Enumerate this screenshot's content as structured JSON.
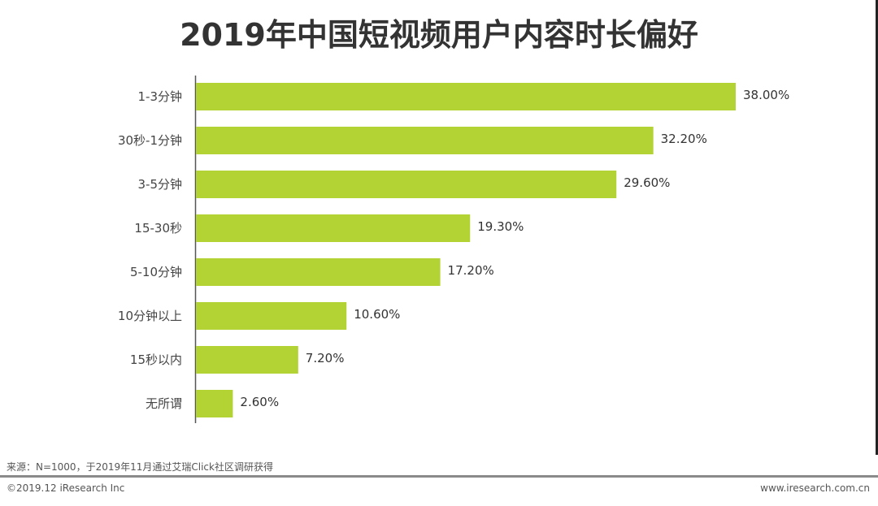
{
  "chart_data": {
    "type": "bar",
    "orientation": "horizontal",
    "title": "2019年中国短视频用户内容时长偏好",
    "categories": [
      "1-3分钟",
      "30秒-1分钟",
      "3-5分钟",
      "15-30秒",
      "5-10分钟",
      "10分钟以上",
      "15秒以内",
      "无所谓"
    ],
    "values": [
      38.0,
      32.2,
      29.6,
      19.3,
      17.2,
      10.6,
      7.2,
      2.6
    ],
    "value_labels": [
      "38.00%",
      "32.20%",
      "29.60%",
      "19.30%",
      "17.20%",
      "10.60%",
      "7.20%",
      "2.60%"
    ],
    "xlabel": "",
    "ylabel": "",
    "xlim": [
      0,
      40
    ],
    "grid": false,
    "bar_color": "#b3d234"
  },
  "footer": {
    "source": "来源：N=1000，于2019年11月通过艾瑞Click社区调研获得",
    "copyright": "©2019.12 iResearch Inc",
    "website": "www.iresearch.com.cn"
  }
}
